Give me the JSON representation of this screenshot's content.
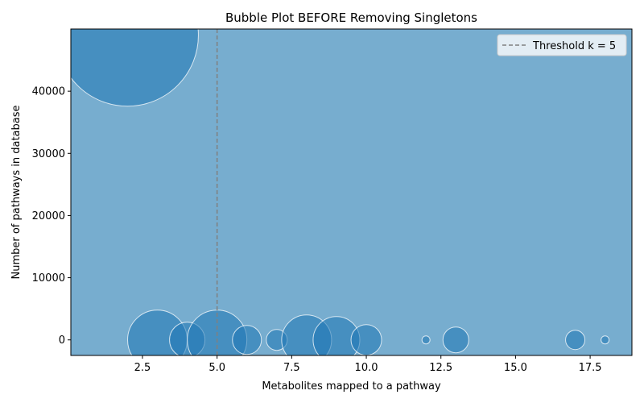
{
  "chart_data": {
    "type": "scatter",
    "title": "Bubble Plot BEFORE Removing Singletons",
    "xlabel": "Metabolites mapped to a pathway",
    "ylabel": "Number of pathways in database",
    "xlim": [
      0.1,
      18.9
    ],
    "ylim": [
      -2500,
      50000
    ],
    "xticks": [
      2.5,
      5.0,
      7.5,
      10.0,
      12.5,
      15.0,
      17.5
    ],
    "xtick_labels": [
      "2.5",
      "5.0",
      "7.5",
      "10.0",
      "12.5",
      "15.0",
      "17.5"
    ],
    "yticks": [
      0,
      10000,
      20000,
      30000,
      40000
    ],
    "ytick_labels": [
      "0",
      "10000",
      "20000",
      "30000",
      "40000"
    ],
    "grid": false,
    "legend_position": "top-right",
    "background_color": "#77adcf",
    "bubble_color": "#1f77b4",
    "bubble_edge_color": "#ffffff",
    "threshold": {
      "x": 5,
      "label": "Threshold k = 5",
      "style": "dashed",
      "color": "#808080"
    },
    "points": [
      {
        "x": 2,
        "y": 49000,
        "r": 88
      },
      {
        "x": 3,
        "y": 0,
        "r": 37
      },
      {
        "x": 4,
        "y": 0,
        "r": 22
      },
      {
        "x": 5,
        "y": 0,
        "r": 37
      },
      {
        "x": 6,
        "y": 0,
        "r": 18
      },
      {
        "x": 7,
        "y": 0,
        "r": 13
      },
      {
        "x": 8,
        "y": 0,
        "r": 31
      },
      {
        "x": 9,
        "y": 0,
        "r": 29
      },
      {
        "x": 10,
        "y": 0,
        "r": 19
      },
      {
        "x": 12,
        "y": 0,
        "r": 5
      },
      {
        "x": 13,
        "y": 0,
        "r": 16
      },
      {
        "x": 17,
        "y": 0,
        "r": 12
      },
      {
        "x": 18,
        "y": 0,
        "r": 5
      }
    ]
  }
}
